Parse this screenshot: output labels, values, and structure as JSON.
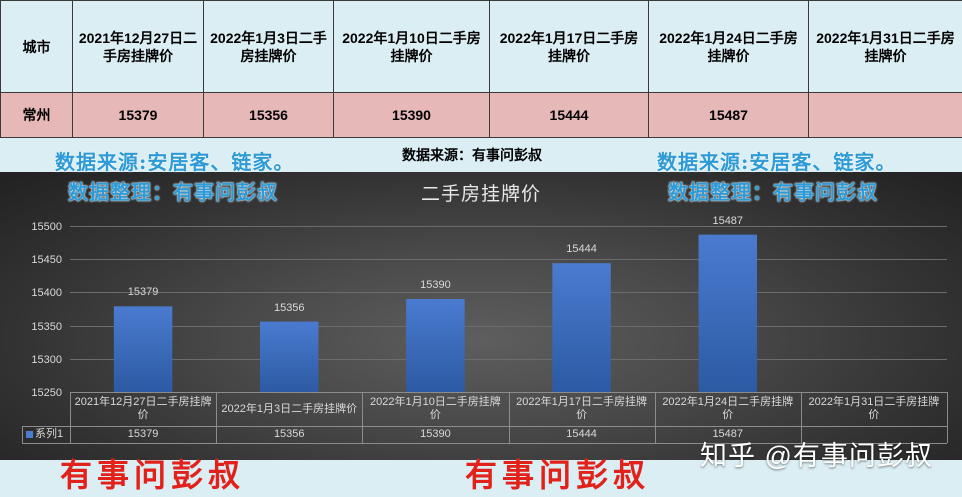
{
  "table": {
    "headers": [
      "城市",
      "2021年12月27日二手房挂牌价",
      "2022年1月3日二手房挂牌价",
      "2022年1月10日二手房挂牌价",
      "2022年1月17日二手房挂牌价",
      "2022年1月24日二手房挂牌价",
      "2022年1月31日二手房挂牌价"
    ],
    "rows": [
      [
        "常州",
        "15379",
        "15356",
        "15390",
        "15444",
        "15487",
        ""
      ]
    ]
  },
  "notes": {
    "source_left": "数据来源:安居客、链家。",
    "source_center": "数据来源：有事问彭叔",
    "source_right": "数据来源:安居客、链家。",
    "organizer_left": "数据整理：有事问彭叔",
    "organizer_right": "数据整理：有事问彭叔"
  },
  "watermarks": {
    "red_left": "有事问彭叔",
    "red_right": "有事问彭叔",
    "zhihu": "知乎 @有事问彭叔"
  },
  "colors": {
    "page_bg": "#daeef3",
    "header_bg": "#daeef3",
    "row_bg": "#e6b8b7",
    "note_blue": "#2e9ad6",
    "bar": "#4a7bd0",
    "bar_dark": "#2c5aa3",
    "red_text": "#e3211b",
    "chart_text": "#d9d9d9"
  },
  "chart_data": {
    "type": "bar",
    "title": "二手房挂牌价",
    "categories": [
      "2021年12月27日二手房挂牌价",
      "2022年1月3日二手房挂牌价",
      "2022年1月10日二手房挂牌价",
      "2022年1月17日二手房挂牌价",
      "2022年1月24日二手房挂牌价",
      "2022年1月31日二手房挂牌价"
    ],
    "series": [
      {
        "name": "系列1",
        "values": [
          15379,
          15356,
          15390,
          15444,
          15487,
          null
        ]
      }
    ],
    "ylim": [
      15250,
      15500
    ],
    "yticks": [
      15250,
      15300,
      15350,
      15400,
      15450,
      15500
    ],
    "grid": true,
    "data_labels": true,
    "data_table": true,
    "legend": "in-data-table"
  }
}
